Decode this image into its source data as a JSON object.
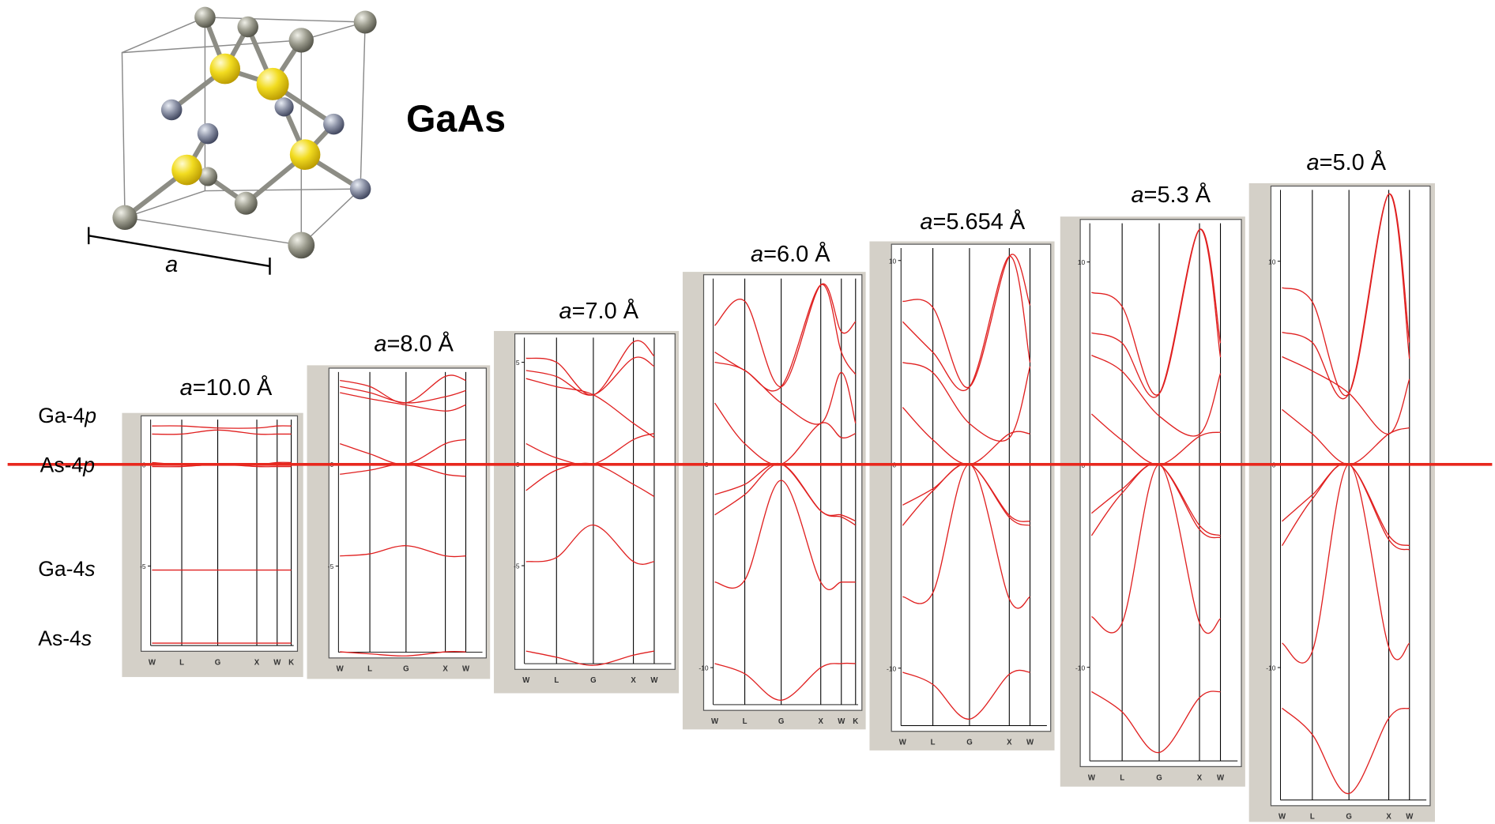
{
  "title": "GaAs",
  "lattice_label": "a",
  "levels": [
    {
      "element": "Ga-4",
      "orbital": "p"
    },
    {
      "element": "As-4",
      "orbital": "p"
    },
    {
      "element": "Ga-4",
      "orbital": "s"
    },
    {
      "element": "As-4",
      "orbital": "s"
    }
  ],
  "chart_data": [
    {
      "type": "line",
      "label_var": "a",
      "label_value": "=10.0 Å",
      "color": "#e02020",
      "categories": [
        "W",
        "L",
        "G",
        "X",
        "W",
        "K"
      ],
      "ylim": [
        -9.2,
        2.4
      ],
      "yticks": [
        0,
        -5
      ],
      "series": [
        {
          "values": [
            1.9,
            1.9,
            1.8,
            1.8,
            1.9,
            1.9
          ]
        },
        {
          "values": [
            1.5,
            1.5,
            1.7,
            1.5,
            1.5,
            1.5
          ]
        },
        {
          "values": [
            0.1,
            0,
            0,
            0,
            0.1,
            0.1
          ]
        },
        {
          "values": [
            -0.1,
            -0.1,
            0,
            -0.1,
            -0.1,
            -0.1
          ]
        },
        {
          "values": [
            -5.2,
            -5.2,
            -5.2,
            -5.2,
            -5.2,
            -5.2
          ]
        },
        {
          "values": [
            -8.8,
            -8.8,
            -8.8,
            -8.8,
            -8.8,
            -8.8
          ]
        }
      ]
    },
    {
      "type": "line",
      "label_var": "a",
      "label_value": "=8.0 Å",
      "color": "#e02020",
      "categories": [
        "W",
        "L",
        "G",
        "X",
        "W"
      ],
      "ylim": [
        -9.5,
        4.7
      ],
      "yticks": [
        0,
        -5
      ],
      "series": [
        {
          "values": [
            4.1,
            3.8,
            3.0,
            4.3,
            4.1
          ]
        },
        {
          "values": [
            3.8,
            3.5,
            3.0,
            3.3,
            3.6
          ]
        },
        {
          "values": [
            3.5,
            3.2,
            2.9,
            2.6,
            2.9
          ]
        },
        {
          "values": [
            1.0,
            0.5,
            0,
            1.0,
            1.2
          ]
        },
        {
          "values": [
            -0.5,
            -0.3,
            0,
            -0.5,
            -0.6
          ]
        },
        {
          "values": [
            -4.5,
            -4.4,
            -4.0,
            -4.5,
            -4.5
          ]
        },
        {
          "values": [
            -9.2,
            -9.3,
            -9.4,
            -9.2,
            -9.2
          ]
        }
      ]
    },
    {
      "type": "line",
      "label_var": "a",
      "label_value": "=7.0 Å",
      "color": "#e02020",
      "categories": [
        "W",
        "L",
        "G",
        "X",
        "W"
      ],
      "ylim": [
        -10.1,
        6.4
      ],
      "yticks": [
        5,
        0,
        -5
      ],
      "series": [
        {
          "values": [
            5.2,
            5.0,
            3.4,
            6.0,
            5.3
          ]
        },
        {
          "values": [
            4.6,
            4.3,
            3.4,
            5.2,
            4.8
          ]
        },
        {
          "values": [
            4.2,
            3.8,
            3.4,
            2.0,
            1.3
          ]
        },
        {
          "values": [
            1.0,
            0.3,
            0,
            1.2,
            1.5
          ]
        },
        {
          "values": [
            -1.3,
            -0.3,
            0,
            -1.0,
            -1.6
          ]
        },
        {
          "values": [
            -4.8,
            -4.6,
            -3.0,
            -4.8,
            -4.8
          ]
        },
        {
          "values": [
            -9.2,
            -9.5,
            -9.9,
            -9.4,
            -9.2
          ]
        }
      ]
    },
    {
      "type": "line",
      "label_var": "a",
      "label_value": "=6.0 Å",
      "color": "#e02020",
      "categories": [
        "W",
        "L",
        "G",
        "X",
        "W",
        "K"
      ],
      "ylim": [
        -12.1,
        9.3
      ],
      "yticks": [
        0,
        -10
      ],
      "series": [
        {
          "values": [
            6.8,
            8.0,
            3.8,
            8.8,
            6.5,
            7.0
          ]
        },
        {
          "values": [
            5.5,
            4.6,
            3.8,
            8.8,
            5.5,
            4.4
          ]
        },
        {
          "values": [
            5.0,
            4.6,
            3.0,
            2.0,
            4.5,
            2.0
          ]
        },
        {
          "values": [
            3.0,
            1.0,
            0,
            2.0,
            1.3,
            1.5
          ]
        },
        {
          "values": [
            -1.5,
            -1.0,
            0,
            -2.3,
            -2.5,
            -2.8
          ]
        },
        {
          "values": [
            -2.5,
            -1.5,
            0,
            -2.3,
            -2.6,
            -3.0
          ]
        },
        {
          "values": [
            -5.8,
            -5.7,
            -0.8,
            -5.8,
            -5.8,
            -5.8
          ]
        },
        {
          "values": [
            -9.8,
            -10.3,
            -11.6,
            -10.0,
            -9.8,
            -9.8
          ]
        }
      ]
    },
    {
      "type": "line",
      "label_var": "a",
      "label_value": "=5.654 Å",
      "color": "#e02020",
      "categories": [
        "W",
        "L",
        "G",
        "X",
        "W"
      ],
      "ylim": [
        -13.1,
        10.8
      ],
      "yticks": [
        10,
        0,
        -10
      ],
      "series": [
        {
          "values": [
            8.0,
            7.7,
            3.8,
            10.2,
            7.8
          ]
        },
        {
          "values": [
            7.0,
            5.5,
            3.8,
            10.2,
            5.0
          ]
        },
        {
          "values": [
            5.0,
            4.5,
            2.0,
            1.3,
            4.8
          ]
        },
        {
          "values": [
            2.8,
            1.2,
            0,
            1.5,
            1.5
          ]
        },
        {
          "values": [
            -2.0,
            -1.2,
            0,
            -2.5,
            -2.8
          ]
        },
        {
          "values": [
            -3.0,
            -1.3,
            0,
            -2.6,
            -3.0
          ]
        },
        {
          "values": [
            -6.5,
            -6.3,
            0,
            -6.6,
            -6.5
          ]
        },
        {
          "values": [
            -10.2,
            -10.8,
            -12.5,
            -10.3,
            -10.2
          ]
        }
      ]
    },
    {
      "type": "line",
      "label_var": "a",
      "label_value": "=5.3 Å",
      "color": "#e02020",
      "categories": [
        "W",
        "L",
        "G",
        "X",
        "W"
      ],
      "ylim": [
        -14.9,
        12.1
      ],
      "yticks": [
        10,
        0,
        -10
      ],
      "series": [
        {
          "values": [
            8.5,
            7.8,
            3.5,
            11.6,
            6.0
          ]
        },
        {
          "values": [
            6.5,
            6.0,
            3.5,
            11.6,
            5.3
          ]
        },
        {
          "values": [
            5.4,
            4.6,
            2.4,
            1.5,
            4.5
          ]
        },
        {
          "values": [
            2.5,
            1.2,
            0,
            1.4,
            1.6
          ]
        },
        {
          "values": [
            -2.4,
            -1.2,
            0,
            -3.0,
            -3.5
          ]
        },
        {
          "values": [
            -3.5,
            -1.4,
            0,
            -3.2,
            -3.6
          ]
        },
        {
          "values": [
            -7.5,
            -7.8,
            0,
            -7.8,
            -7.6
          ]
        },
        {
          "values": [
            -11.2,
            -12.2,
            -14.2,
            -11.5,
            -11.2
          ]
        }
      ]
    },
    {
      "type": "line",
      "label_var": "a",
      "label_value": "=5.0 Å",
      "color": "#e02020",
      "categories": [
        "W",
        "L",
        "G",
        "X",
        "W"
      ],
      "ylim": [
        -16.8,
        13.7
      ],
      "yticks": [
        10,
        0,
        -10
      ],
      "series": [
        {
          "values": [
            8.7,
            8.0,
            3.5,
            13.3,
            6.0
          ]
        },
        {
          "values": [
            6.5,
            6.0,
            3.5,
            13.3,
            5.2
          ]
        },
        {
          "values": [
            5.3,
            4.6,
            3.5,
            1.5,
            4.2
          ]
        },
        {
          "values": [
            2.7,
            1.5,
            0,
            1.5,
            1.8
          ]
        },
        {
          "values": [
            -2.8,
            -1.5,
            0,
            -3.5,
            -4.0
          ]
        },
        {
          "values": [
            -4.0,
            -1.7,
            0,
            -3.7,
            -4.2
          ]
        },
        {
          "values": [
            -8.8,
            -9.2,
            0,
            -9.0,
            -8.8
          ]
        },
        {
          "values": [
            -12.0,
            -13.3,
            -16.2,
            -12.5,
            -12.0
          ]
        }
      ]
    }
  ]
}
